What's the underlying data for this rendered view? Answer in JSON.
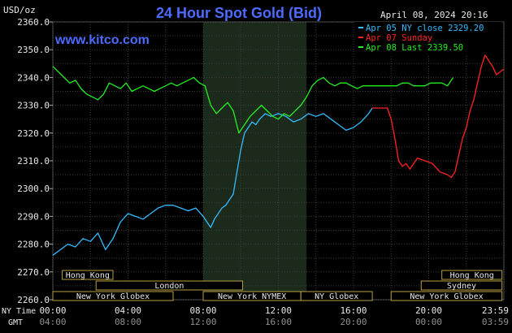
{
  "header": {
    "units": "USD/oz",
    "title": "24 Hour Spot Gold (Bid)",
    "datetime": "April 08, 2024 20:16",
    "watermark": "www.kitco.com"
  },
  "legend": [
    {
      "label": "Apr 05 NY close 2329.20",
      "color": "#33bbff"
    },
    {
      "label": "Apr 07 Sunday",
      "color": "#ff2222"
    },
    {
      "label": "Apr 08 Last 2339.50",
      "color": "#22ee22"
    }
  ],
  "sessions": {
    "row1": [
      {
        "label": "Hong Kong",
        "start": 0.5,
        "end": 3.2
      },
      {
        "label": "Hong Kong",
        "start": 20.7,
        "end": 23.9
      }
    ],
    "row2": [
      {
        "label": "London",
        "start": 2.3,
        "end": 10.1
      },
      {
        "label": "Sydney",
        "start": 19.6,
        "end": 23.9
      }
    ],
    "row3": [
      {
        "label": "New York Globex",
        "start": 0.0,
        "end": 6.4
      },
      {
        "label": "New York NYMEX",
        "start": 8.0,
        "end": 13.2
      },
      {
        "label": "NY Globex",
        "start": 13.2,
        "end": 17.0
      },
      {
        "label": "New York Globex",
        "start": 18.0,
        "end": 23.9
      }
    ]
  },
  "footer": {
    "ny_label": "NY Time",
    "gmt_label": "GMT"
  },
  "chart_data": {
    "type": "line",
    "title": "24 Hour Spot Gold (Bid)",
    "ylabel": "USD/oz",
    "ylim": [
      2260,
      2360
    ],
    "xlim": [
      0,
      24
    ],
    "y_ticks": [
      "2260.0",
      "2270.0",
      "2280.0",
      "2290.0",
      "2300.0",
      "2310.0",
      "2320.0",
      "2330.0",
      "2340.0",
      "2350.0",
      "2360.0"
    ],
    "x_ticks_ny": [
      "00:00",
      "04:00",
      "08:00",
      "12:00",
      "16:00",
      "20:00",
      "23:59"
    ],
    "x_ticks_gmt": [
      "04:00",
      "08:00",
      "12:00",
      "16:00",
      "20:00",
      "00:00",
      "03:59"
    ],
    "grid": true,
    "shaded_region": [
      8.0,
      13.5
    ],
    "series": [
      {
        "name": "Apr 05 NY close 2329.20",
        "color": "#33bbff",
        "x": [
          0,
          0.4,
          0.8,
          1.2,
          1.6,
          2.0,
          2.4,
          2.8,
          3.2,
          3.6,
          4.0,
          4.4,
          4.8,
          5.2,
          5.6,
          6.0,
          6.4,
          6.8,
          7.2,
          7.6,
          8.0,
          8.2,
          8.4,
          8.6,
          8.8,
          9.0,
          9.2,
          9.4,
          9.6,
          9.8,
          10.0,
          10.2,
          10.4,
          10.6,
          10.8,
          11.0,
          11.3,
          11.6,
          12.0,
          12.4,
          12.8,
          13.2,
          13.6,
          14.0,
          14.4,
          14.8,
          15.2,
          15.6,
          16.0,
          16.4,
          16.8,
          17.0
        ],
        "values": [
          2276,
          2278,
          2280,
          2279,
          2282,
          2281,
          2284,
          2278,
          2282,
          2288,
          2291,
          2290,
          2289,
          2291,
          2293,
          2294,
          2294,
          2293,
          2292,
          2293,
          2290,
          2288,
          2286,
          2289,
          2291,
          2293,
          2294,
          2296,
          2298,
          2306,
          2314,
          2320,
          2322,
          2324,
          2323,
          2325,
          2327,
          2326,
          2327,
          2326,
          2324,
          2325,
          2327,
          2326,
          2327,
          2325,
          2323,
          2321,
          2322,
          2324,
          2327,
          2329
        ]
      },
      {
        "name": "Apr 07 Sunday",
        "color": "#ff2222",
        "x": [
          17.0,
          17.4,
          17.8,
          18.0,
          18.2,
          18.4,
          18.6,
          18.8,
          19.0,
          19.4,
          19.8,
          20.2,
          20.6,
          21.0,
          21.2,
          21.4,
          21.6,
          21.8,
          22.0,
          22.2,
          22.4,
          22.6,
          22.8,
          23.0,
          23.2,
          23.4,
          23.6,
          23.8,
          23.98
        ],
        "values": [
          2329,
          2329,
          2329,
          2325,
          2318,
          2310,
          2308,
          2309,
          2307,
          2311,
          2310,
          2309,
          2306,
          2305,
          2304,
          2306,
          2312,
          2318,
          2322,
          2328,
          2332,
          2338,
          2344,
          2348,
          2346,
          2344,
          2341,
          2342,
          2343
        ]
      },
      {
        "name": "Apr 08 Last 2339.50",
        "color": "#22ee22",
        "x": [
          0,
          0.3,
          0.6,
          0.9,
          1.2,
          1.5,
          1.8,
          2.1,
          2.4,
          2.7,
          3.0,
          3.3,
          3.6,
          3.9,
          4.2,
          4.5,
          4.8,
          5.1,
          5.4,
          5.7,
          6.0,
          6.3,
          6.6,
          6.9,
          7.2,
          7.5,
          7.8,
          8.1,
          8.4,
          8.7,
          9.0,
          9.3,
          9.6,
          9.9,
          10.2,
          10.5,
          10.8,
          11.1,
          11.4,
          11.7,
          12.0,
          12.3,
          12.6,
          12.9,
          13.2,
          13.5,
          13.8,
          14.1,
          14.4,
          14.7,
          15.0,
          15.3,
          15.6,
          15.9,
          16.2,
          16.5,
          16.8,
          17.1,
          17.4,
          17.7,
          18.0,
          18.3,
          18.6,
          18.9,
          19.2,
          19.5,
          19.8,
          20.1,
          20.4,
          20.7,
          21.0,
          21.3
        ],
        "values": [
          2344,
          2342,
          2340,
          2338,
          2339,
          2336,
          2334,
          2333,
          2332,
          2334,
          2338,
          2337,
          2336,
          2338,
          2335,
          2336,
          2337,
          2336,
          2335,
          2336,
          2337,
          2338,
          2337,
          2338,
          2339,
          2340,
          2338,
          2337,
          2330,
          2327,
          2329,
          2331,
          2328,
          2320,
          2323,
          2326,
          2328,
          2330,
          2328,
          2326,
          2325,
          2327,
          2326,
          2328,
          2330,
          2333,
          2337,
          2339,
          2340,
          2338,
          2337,
          2338,
          2338,
          2337,
          2336,
          2337,
          2337,
          2337,
          2337,
          2337,
          2337,
          2337,
          2338,
          2338,
          2337,
          2337,
          2337,
          2338,
          2338,
          2338,
          2337,
          2340
        ]
      }
    ]
  }
}
